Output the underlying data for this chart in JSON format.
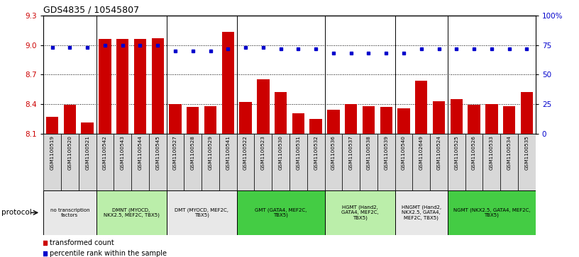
{
  "title": "GDS4835 / 10545807",
  "samples": [
    "GSM1100519",
    "GSM1100520",
    "GSM1100521",
    "GSM1100542",
    "GSM1100543",
    "GSM1100544",
    "GSM1100545",
    "GSM1100527",
    "GSM1100528",
    "GSM1100529",
    "GSM1100541",
    "GSM1100522",
    "GSM1100523",
    "GSM1100530",
    "GSM1100531",
    "GSM1100532",
    "GSM1100536",
    "GSM1100537",
    "GSM1100538",
    "GSM1100539",
    "GSM1100540",
    "GSM1102649",
    "GSM1100524",
    "GSM1100525",
    "GSM1100526",
    "GSM1100533",
    "GSM1100534",
    "GSM1100535"
  ],
  "bar_values": [
    8.27,
    8.39,
    8.21,
    9.06,
    9.06,
    9.06,
    9.07,
    8.4,
    8.37,
    8.38,
    9.13,
    8.42,
    8.65,
    8.52,
    8.31,
    8.25,
    8.34,
    8.4,
    8.38,
    8.37,
    8.36,
    8.64,
    8.43,
    8.45,
    8.39,
    8.4,
    8.38,
    8.52
  ],
  "dot_values": [
    73,
    73,
    73,
    75,
    75,
    75,
    75,
    70,
    70,
    70,
    72,
    73,
    73,
    72,
    72,
    72,
    68,
    68,
    68,
    68,
    68,
    72,
    72,
    72,
    72,
    72,
    72,
    72
  ],
  "bar_color": "#cc0000",
  "dot_color": "#0000cc",
  "ylim_left": [
    8.1,
    9.3
  ],
  "ylim_right": [
    0,
    100
  ],
  "yticks_left": [
    8.1,
    8.4,
    8.7,
    9.0,
    9.3
  ],
  "yticks_right": [
    0,
    25,
    50,
    75,
    100
  ],
  "ytick_labels_right": [
    "0",
    "25",
    "50",
    "75",
    "100%"
  ],
  "protocols": [
    {
      "label": "no transcription\nfactors",
      "start": 0,
      "end": 3,
      "color": "#e8e8e8"
    },
    {
      "label": "DMNT (MYOCD,\nNKX2.5, MEF2C, TBX5)",
      "start": 3,
      "end": 7,
      "color": "#bbeeaa"
    },
    {
      "label": "DMT (MYOCD, MEF2C,\nTBX5)",
      "start": 7,
      "end": 11,
      "color": "#e8e8e8"
    },
    {
      "label": "GMT (GATA4, MEF2C,\nTBX5)",
      "start": 11,
      "end": 16,
      "color": "#44cc44"
    },
    {
      "label": "HGMT (Hand2,\nGATA4, MEF2C,\nTBX5)",
      "start": 16,
      "end": 20,
      "color": "#bbeeaa"
    },
    {
      "label": "HNGMT (Hand2,\nNKX2.5, GATA4,\nMEF2C, TBX5)",
      "start": 20,
      "end": 23,
      "color": "#e8e8e8"
    },
    {
      "label": "NGMT (NKX2.5, GATA4, MEF2C,\nTBX5)",
      "start": 23,
      "end": 28,
      "color": "#44cc44"
    }
  ],
  "legend_items": [
    {
      "label": "transformed count",
      "color": "#cc0000"
    },
    {
      "label": "percentile rank within the sample",
      "color": "#0000cc"
    }
  ],
  "protocol_label": "protocol",
  "base_value": 8.1
}
